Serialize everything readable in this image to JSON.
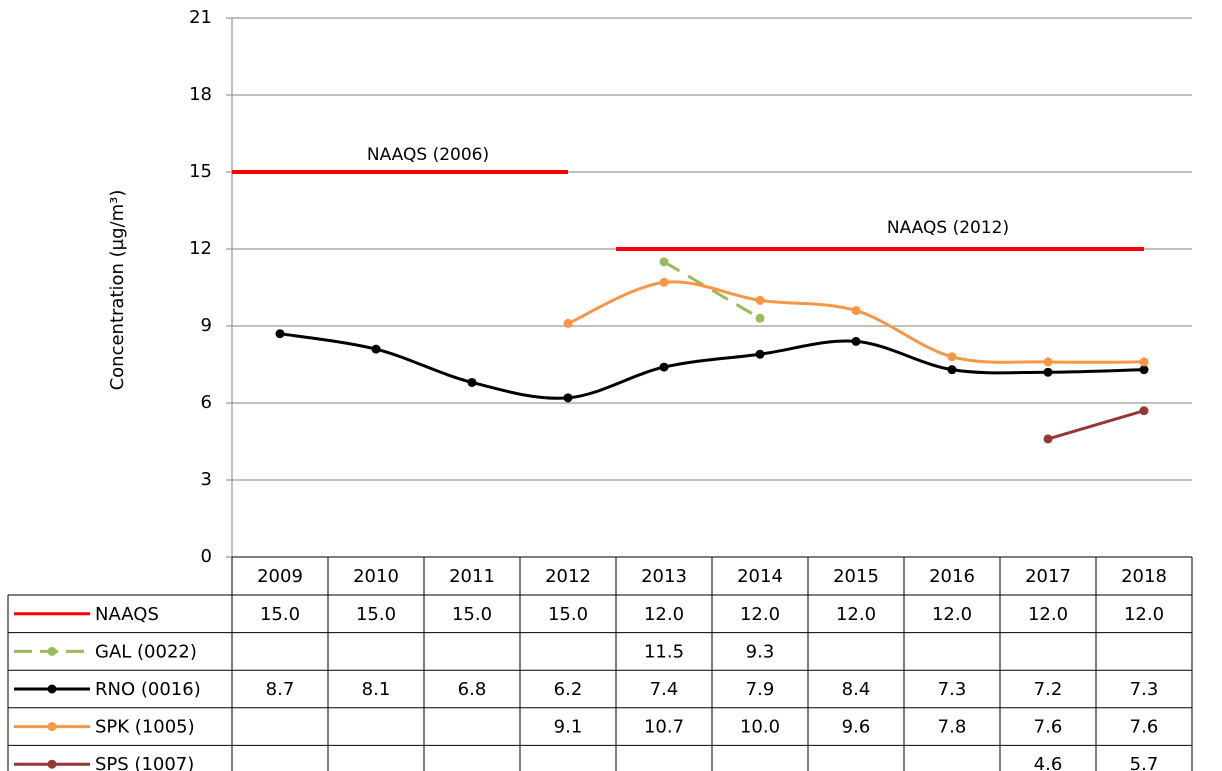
{
  "chart_data": {
    "type": "line",
    "ylabel": "Concentration (µg/m³)",
    "categories": [
      "2009",
      "2010",
      "2011",
      "2012",
      "2013",
      "2014",
      "2015",
      "2016",
      "2017",
      "2018"
    ],
    "ylim": [
      0,
      21
    ],
    "yticks": [
      0,
      3,
      6,
      9,
      12,
      15,
      18,
      21
    ],
    "grid": true,
    "annotations": [
      "NAAQS (2006)",
      "NAAQS (2012)"
    ],
    "series": [
      {
        "name": "NAAQS",
        "color": "#ff0000",
        "markers": false,
        "dashed": false,
        "values": [
          15,
          15,
          15,
          15,
          12,
          12,
          12,
          12,
          12,
          12
        ],
        "value_labels": [
          "15.0",
          "15.0",
          "15.0",
          "15.0",
          "12.0",
          "12.0",
          "12.0",
          "12.0",
          "12.0",
          "12.0"
        ]
      },
      {
        "name": "GAL (0022)",
        "color": "#9bbb59",
        "markers": true,
        "dashed": true,
        "values": [
          null,
          null,
          null,
          null,
          11.5,
          9.3,
          null,
          null,
          null,
          null
        ],
        "value_labels": [
          null,
          null,
          null,
          null,
          "11.5",
          "9.3",
          null,
          null,
          null,
          null
        ]
      },
      {
        "name": "RNO (0016)",
        "color": "#000000",
        "markers": true,
        "dashed": false,
        "values": [
          8.7,
          8.1,
          6.8,
          6.2,
          7.4,
          7.9,
          8.4,
          7.3,
          7.2,
          7.3
        ],
        "value_labels": [
          "8.7",
          "8.1",
          "6.8",
          "6.2",
          "7.4",
          "7.9",
          "8.4",
          "7.3",
          "7.2",
          "7.3"
        ]
      },
      {
        "name": "SPK (1005)",
        "color": "#f79646",
        "markers": true,
        "dashed": false,
        "values": [
          null,
          null,
          null,
          9.1,
          10.7,
          10,
          9.6,
          7.8,
          7.6,
          7.6
        ],
        "value_labels": [
          null,
          null,
          null,
          "9.1",
          "10.7",
          "10.0",
          "9.6",
          "7.8",
          "7.6",
          "7.6"
        ]
      },
      {
        "name": "SPS (1007)",
        "color": "#953735",
        "markers": true,
        "dashed": false,
        "values": [
          null,
          null,
          null,
          null,
          null,
          null,
          null,
          null,
          4.6,
          5.7
        ],
        "value_labels": [
          null,
          null,
          null,
          null,
          null,
          null,
          null,
          null,
          "4.6",
          "5.7"
        ]
      }
    ]
  }
}
